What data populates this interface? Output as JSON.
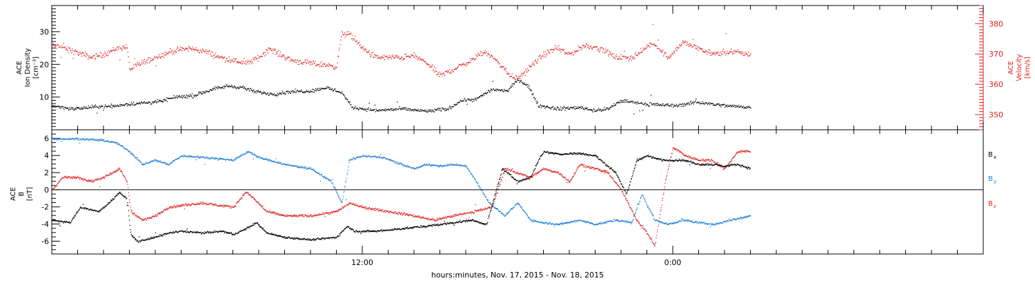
{
  "chart_data": [
    {
      "type": "scatter",
      "panel": "top",
      "left_axis": {
        "label_lines": [
          "ACE",
          "Ion Density",
          "[cm⁻³]"
        ],
        "ticks": [
          "10",
          "20",
          "30"
        ],
        "ylim": [
          0,
          38
        ]
      },
      "right_axis": {
        "label_lines": [
          "ACE",
          "Velocity",
          "[km/s]"
        ],
        "ticks": [
          "350",
          "360",
          "370",
          "380"
        ],
        "ylim": [
          345,
          386
        ],
        "color": "#e02020"
      },
      "series": [
        {
          "color": "#000000",
          "axis": "left",
          "anchors": [
            [
              0.0,
              7.5
            ],
            [
              0.8,
              6.5
            ],
            [
              1.5,
              7.0
            ],
            [
              2.5,
              7.5
            ],
            [
              3.0,
              8.0
            ],
            [
              3.8,
              8.5
            ],
            [
              4.2,
              8.8
            ],
            [
              4.8,
              10.2
            ],
            [
              5.5,
              10.5
            ],
            [
              6.2,
              12.5
            ],
            [
              6.8,
              13.5
            ],
            [
              7.4,
              13.0
            ],
            [
              7.8,
              11.8
            ],
            [
              8.6,
              11.0
            ],
            [
              9.2,
              11.8
            ],
            [
              10.0,
              12.0
            ],
            [
              10.6,
              13.0
            ],
            [
              11.2,
              11.5
            ],
            [
              11.6,
              7.0
            ],
            [
              12.5,
              6.0
            ],
            [
              13.5,
              6.5
            ],
            [
              14.5,
              5.8
            ],
            [
              15.3,
              6.5
            ],
            [
              15.8,
              9.0
            ],
            [
              16.4,
              9.5
            ],
            [
              17.0,
              12.5
            ],
            [
              17.6,
              12.0
            ],
            [
              18.0,
              15.5
            ],
            [
              18.4,
              13.5
            ],
            [
              18.8,
              7.5
            ],
            [
              19.6,
              6.5
            ],
            [
              20.4,
              7.0
            ],
            [
              21.0,
              6.0
            ],
            [
              21.5,
              6.5
            ],
            [
              22.0,
              9.0
            ],
            [
              23.0,
              8.0
            ],
            [
              24.0,
              7.5
            ],
            [
              25.0,
              8.5
            ],
            [
              26.0,
              7.5
            ],
            [
              27.0,
              7.0
            ]
          ]
        },
        {
          "color": "#e02020",
          "axis": "right",
          "anchors": [
            [
              0.0,
              373
            ],
            [
              0.5,
              372
            ],
            [
              1.0,
              370.5
            ],
            [
              1.5,
              369
            ],
            [
              2.0,
              370
            ],
            [
              2.5,
              372
            ],
            [
              2.9,
              372.5
            ],
            [
              3.0,
              365
            ],
            [
              3.4,
              367
            ],
            [
              4.0,
              369
            ],
            [
              4.6,
              371
            ],
            [
              5.3,
              372
            ],
            [
              5.9,
              371
            ],
            [
              6.5,
              369
            ],
            [
              7.0,
              368
            ],
            [
              7.5,
              367
            ],
            [
              8.0,
              369
            ],
            [
              8.4,
              372
            ],
            [
              8.8,
              370
            ],
            [
              9.3,
              368
            ],
            [
              10.0,
              367
            ],
            [
              10.6,
              366.5
            ],
            [
              11.0,
              366
            ],
            [
              11.2,
              377
            ],
            [
              11.5,
              376.5
            ],
            [
              12.0,
              372
            ],
            [
              12.5,
              369
            ],
            [
              13.5,
              369
            ],
            [
              14.0,
              369.5
            ],
            [
              14.5,
              367
            ],
            [
              15.0,
              363
            ],
            [
              15.5,
              365
            ],
            [
              16.2,
              368
            ],
            [
              16.7,
              371
            ],
            [
              17.2,
              368
            ],
            [
              17.7,
              363
            ],
            [
              18.0,
              362
            ],
            [
              18.5,
              366
            ],
            [
              19.0,
              370
            ],
            [
              19.5,
              372
            ],
            [
              20.0,
              370
            ],
            [
              20.6,
              373
            ],
            [
              21.2,
              372
            ],
            [
              21.8,
              369
            ],
            [
              22.4,
              369
            ],
            [
              22.8,
              371
            ],
            [
              23.2,
              374
            ],
            [
              23.8,
              369
            ],
            [
              24.4,
              374
            ],
            [
              25.0,
              372
            ],
            [
              25.6,
              370
            ],
            [
              26.2,
              371
            ],
            [
              27.0,
              370
            ]
          ]
        }
      ]
    },
    {
      "type": "scatter",
      "panel": "bottom",
      "left_axis": {
        "label_lines": [
          "ACE",
          "B",
          "[nT]"
        ],
        "ticks": [
          "-6",
          "-4",
          "-2",
          "0",
          "2",
          "4",
          "6"
        ],
        "ylim": [
          -7.5,
          7.0
        ]
      },
      "zero_line": true,
      "series": [
        {
          "name": "Bx",
          "name_main": "B",
          "name_sub": "x",
          "color": "#000000",
          "anchors": [
            [
              0.0,
              -3.5
            ],
            [
              0.7,
              -3.8
            ],
            [
              1.1,
              -2.0
            ],
            [
              1.8,
              -2.5
            ],
            [
              2.2,
              -1.5
            ],
            [
              2.6,
              -0.3
            ],
            [
              2.9,
              -1.0
            ],
            [
              3.05,
              -5.2
            ],
            [
              3.3,
              -6.0
            ],
            [
              4.0,
              -5.5
            ],
            [
              4.5,
              -5.0
            ],
            [
              5.0,
              -4.8
            ],
            [
              5.8,
              -5.0
            ],
            [
              6.6,
              -4.8
            ],
            [
              7.0,
              -5.2
            ],
            [
              7.5,
              -4.5
            ],
            [
              7.9,
              -3.8
            ],
            [
              8.3,
              -5.0
            ],
            [
              9.0,
              -5.5
            ],
            [
              10.0,
              -5.8
            ],
            [
              11.0,
              -5.5
            ],
            [
              11.4,
              -4.2
            ],
            [
              11.7,
              -4.8
            ],
            [
              12.5,
              -4.8
            ],
            [
              13.5,
              -4.5
            ],
            [
              14.5,
              -4.2
            ],
            [
              15.5,
              -3.8
            ],
            [
              16.2,
              -3.5
            ],
            [
              16.8,
              -4.0
            ],
            [
              17.4,
              2.5
            ],
            [
              18.0,
              1.0
            ],
            [
              18.5,
              1.5
            ],
            [
              18.8,
              3.5
            ],
            [
              19.0,
              4.5
            ],
            [
              19.6,
              4.2
            ],
            [
              20.4,
              4.3
            ],
            [
              21.0,
              4.0
            ],
            [
              21.4,
              3.0
            ],
            [
              21.8,
              2.0
            ],
            [
              22.2,
              -0.5
            ],
            [
              22.6,
              3.5
            ],
            [
              23.0,
              4.0
            ],
            [
              23.6,
              3.5
            ],
            [
              24.4,
              3.5
            ],
            [
              25.0,
              3.0
            ],
            [
              25.5,
              3.0
            ],
            [
              26.0,
              2.8
            ],
            [
              26.5,
              3.0
            ],
            [
              27.0,
              2.5
            ]
          ]
        },
        {
          "name": "By",
          "name_main": "B",
          "name_sub": "y",
          "color": "#1e7fd8",
          "anchors": [
            [
              0.0,
              6.0
            ],
            [
              1.0,
              6.0
            ],
            [
              2.0,
              5.8
            ],
            [
              2.5,
              5.5
            ],
            [
              3.0,
              4.5
            ],
            [
              3.5,
              3.0
            ],
            [
              4.0,
              3.5
            ],
            [
              4.5,
              3.0
            ],
            [
              5.0,
              4.0
            ],
            [
              6.0,
              3.8
            ],
            [
              7.0,
              3.5
            ],
            [
              7.6,
              4.5
            ],
            [
              8.0,
              3.8
            ],
            [
              9.0,
              3.0
            ],
            [
              10.0,
              2.5
            ],
            [
              10.8,
              1.0
            ],
            [
              11.2,
              -1.5
            ],
            [
              11.5,
              3.5
            ],
            [
              12.0,
              4.0
            ],
            [
              12.8,
              3.8
            ],
            [
              13.5,
              3.0
            ],
            [
              14.0,
              2.5
            ],
            [
              14.5,
              3.0
            ],
            [
              15.0,
              2.8
            ],
            [
              15.5,
              3.0
            ],
            [
              16.0,
              2.8
            ],
            [
              16.4,
              1.0
            ],
            [
              16.9,
              -1.5
            ],
            [
              17.5,
              -3.0
            ],
            [
              18.0,
              -1.5
            ],
            [
              18.5,
              -3.5
            ],
            [
              19.0,
              -3.8
            ],
            [
              19.6,
              -4.0
            ],
            [
              20.4,
              -3.5
            ],
            [
              21.0,
              -4.0
            ],
            [
              21.8,
              -3.5
            ],
            [
              22.4,
              -3.8
            ],
            [
              22.8,
              -0.5
            ],
            [
              23.3,
              -3.5
            ],
            [
              23.8,
              -4.0
            ],
            [
              24.4,
              -3.5
            ],
            [
              25.0,
              -3.8
            ],
            [
              25.6,
              -4.0
            ],
            [
              26.2,
              -3.5
            ],
            [
              27.0,
              -3.0
            ]
          ]
        },
        {
          "name": "Bz",
          "name_main": "B",
          "name_sub": "z",
          "color": "#e02020",
          "anchors": [
            [
              0.0,
              0.0
            ],
            [
              0.4,
              1.5
            ],
            [
              1.0,
              1.5
            ],
            [
              1.5,
              1.0
            ],
            [
              2.0,
              1.5
            ],
            [
              2.6,
              2.5
            ],
            [
              2.9,
              1.0
            ],
            [
              3.05,
              -2.5
            ],
            [
              3.5,
              -3.5
            ],
            [
              4.0,
              -3.0
            ],
            [
              4.5,
              -2.0
            ],
            [
              5.0,
              -1.8
            ],
            [
              5.8,
              -1.5
            ],
            [
              6.5,
              -1.8
            ],
            [
              7.0,
              -2.0
            ],
            [
              7.5,
              -0.2
            ],
            [
              7.8,
              -1.0
            ],
            [
              8.3,
              -2.5
            ],
            [
              9.0,
              -3.0
            ],
            [
              10.0,
              -3.0
            ],
            [
              11.0,
              -2.5
            ],
            [
              11.5,
              -1.5
            ],
            [
              12.0,
              -2.0
            ],
            [
              13.0,
              -2.5
            ],
            [
              14.0,
              -3.0
            ],
            [
              14.8,
              -3.5
            ],
            [
              15.5,
              -3.0
            ],
            [
              16.3,
              -2.5
            ],
            [
              17.0,
              -2.0
            ],
            [
              17.5,
              2.5
            ],
            [
              18.0,
              2.0
            ],
            [
              18.5,
              1.5
            ],
            [
              19.0,
              2.5
            ],
            [
              19.6,
              2.0
            ],
            [
              20.0,
              1.0
            ],
            [
              20.4,
              3.0
            ],
            [
              21.0,
              2.5
            ],
            [
              21.5,
              2.0
            ],
            [
              22.0,
              0.0
            ],
            [
              22.6,
              -3.5
            ],
            [
              23.0,
              -5.0
            ],
            [
              23.3,
              -6.5
            ],
            [
              23.7,
              1.0
            ],
            [
              24.0,
              5.0
            ],
            [
              24.5,
              4.0
            ],
            [
              25.0,
              3.5
            ],
            [
              25.5,
              3.5
            ],
            [
              26.0,
              2.5
            ],
            [
              26.5,
              4.5
            ],
            [
              27.0,
              4.5
            ]
          ]
        }
      ]
    }
  ],
  "x_axis": {
    "ticks": [
      {
        "hours": 12,
        "label": "12:00"
      },
      {
        "hours": 24,
        "label": "0:00"
      }
    ],
    "xlim_hours": [
      0,
      36
    ],
    "data_end_hours": 27,
    "title": "hours:minutes, Nov. 17, 2015 - Nov. 18, 2015"
  }
}
